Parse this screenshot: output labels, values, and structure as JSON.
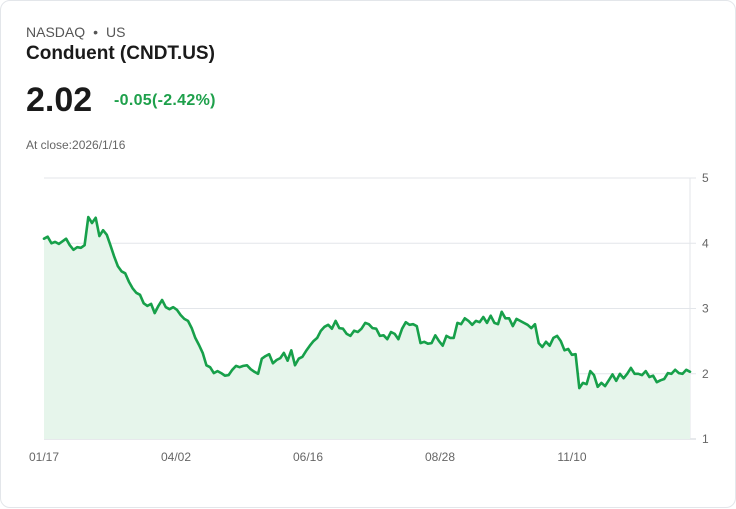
{
  "header": {
    "exchange": "NASDAQ",
    "separator": "•",
    "region": "US",
    "title": "Conduent (CNDT.US)"
  },
  "quote": {
    "price": "2.02",
    "change": "-0.05(-2.42%)",
    "close_label": "At close:2026/1/16"
  },
  "colors": {
    "line": "#17a04a",
    "fill": "#e6f5eb",
    "change": "#1ea04b"
  },
  "chart_data": {
    "type": "area",
    "title": "",
    "xlabel": "",
    "ylabel": "",
    "ylim": [
      1,
      5
    ],
    "y_ticks": [
      "1",
      "2",
      "3",
      "4",
      "5"
    ],
    "x_ticks": [
      "01/17",
      "04/02",
      "06/16",
      "08/28",
      "11/10"
    ],
    "grid": true,
    "values": [
      4.07,
      4.1,
      4.0,
      4.02,
      3.99,
      4.03,
      4.07,
      3.97,
      3.9,
      3.94,
      3.93,
      3.97,
      4.4,
      4.31,
      4.39,
      4.11,
      4.2,
      4.13,
      3.97,
      3.8,
      3.65,
      3.57,
      3.54,
      3.41,
      3.31,
      3.24,
      3.21,
      3.08,
      3.04,
      3.07,
      2.93,
      3.04,
      3.13,
      3.02,
      2.99,
      3.02,
      2.98,
      2.9,
      2.84,
      2.81,
      2.7,
      2.55,
      2.44,
      2.32,
      2.13,
      2.1,
      2.01,
      2.04,
      2.01,
      1.97,
      1.98,
      2.06,
      2.12,
      2.1,
      2.12,
      2.13,
      2.07,
      2.03,
      2.0,
      2.23,
      2.27,
      2.3,
      2.16,
      2.21,
      2.24,
      2.32,
      2.2,
      2.36,
      2.13,
      2.23,
      2.26,
      2.35,
      2.43,
      2.5,
      2.55,
      2.66,
      2.72,
      2.75,
      2.69,
      2.81,
      2.7,
      2.69,
      2.61,
      2.58,
      2.66,
      2.64,
      2.69,
      2.78,
      2.76,
      2.7,
      2.69,
      2.58,
      2.59,
      2.53,
      2.64,
      2.61,
      2.53,
      2.69,
      2.79,
      2.75,
      2.76,
      2.73,
      2.47,
      2.49,
      2.46,
      2.47,
      2.59,
      2.5,
      2.43,
      2.58,
      2.55,
      2.55,
      2.78,
      2.76,
      2.85,
      2.81,
      2.75,
      2.81,
      2.79,
      2.87,
      2.78,
      2.89,
      2.78,
      2.76,
      2.95,
      2.85,
      2.85,
      2.73,
      2.84,
      2.81,
      2.78,
      2.75,
      2.7,
      2.76,
      2.47,
      2.41,
      2.49,
      2.43,
      2.55,
      2.58,
      2.5,
      2.36,
      2.38,
      2.29,
      2.3,
      1.78,
      1.86,
      1.84,
      2.04,
      1.98,
      1.8,
      1.86,
      1.81,
      1.9,
      1.99,
      1.89,
      2.0,
      1.93,
      2.0,
      2.09,
      2.0,
      2.0,
      1.98,
      2.04,
      1.95,
      1.97,
      1.87,
      1.9,
      1.92,
      2.01,
      2.0,
      2.06,
      2.01,
      2.0,
      2.06,
      2.03
    ]
  }
}
